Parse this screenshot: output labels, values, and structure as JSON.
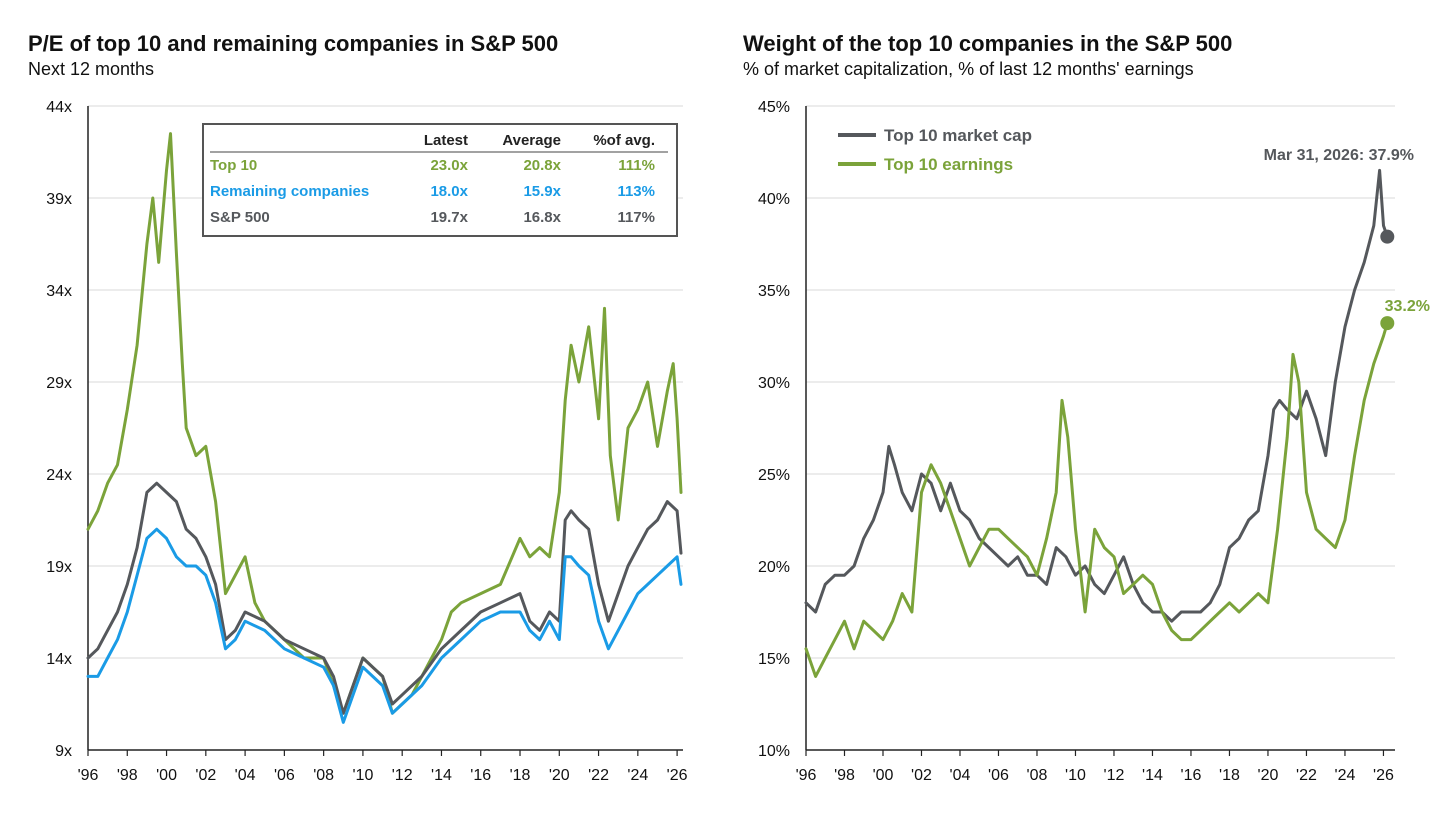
{
  "colors": {
    "gray": "#55585c",
    "green": "#7ba33a",
    "blue": "#1a9be6",
    "grid": "#d9d9d9",
    "axis": "#222222"
  },
  "chart_data": [
    {
      "type": "line",
      "title": "P/E of top 10 and remaining companies in S&P 500",
      "subtitle": "Next 12 months",
      "ylim": [
        9,
        44
      ],
      "yticks": [
        9,
        14,
        19,
        24,
        29,
        34,
        39,
        44
      ],
      "ytick_labels": [
        "9x",
        "14x",
        "19x",
        "24x",
        "29x",
        "34x",
        "39x",
        "44x"
      ],
      "xlim": [
        1996,
        2026.3
      ],
      "xticks": [
        1996,
        1998,
        2000,
        2002,
        2004,
        2006,
        2008,
        2010,
        2012,
        2014,
        2016,
        2018,
        2020,
        2022,
        2024,
        2026
      ],
      "xtick_labels": [
        "'96",
        "'98",
        "'00",
        "'02",
        "'04",
        "'06",
        "'08",
        "'10",
        "'12",
        "'14",
        "'16",
        "'18",
        "'20",
        "'22",
        "'24",
        "'26"
      ],
      "table": {
        "headers": [
          "",
          "Latest",
          "Average",
          "%of avg."
        ],
        "rows": [
          {
            "cells": [
              "Top 10",
              "23.0x",
              "20.8x",
              "111%"
            ],
            "color": "green"
          },
          {
            "cells": [
              "Remaining companies",
              "18.0x",
              "15.9x",
              "113%"
            ],
            "color": "blue"
          },
          {
            "cells": [
              "S&P 500",
              "19.7x",
              "16.8x",
              "117%"
            ],
            "color": "gray"
          }
        ]
      },
      "series": [
        {
          "color": "green",
          "x": [
            1996,
            1996.5,
            1997,
            1997.5,
            1998,
            1998.5,
            1999,
            1999.3,
            1999.6,
            2000,
            2000.2,
            2000.5,
            2000.8,
            2001,
            2001.5,
            2002,
            2002.5,
            2003,
            2003.5,
            2004,
            2004.5,
            2005,
            2006,
            2007,
            2008,
            2008.5,
            2009,
            2009.5,
            2010,
            2010.5,
            2011,
            2011.5,
            2012,
            2012.5,
            2013,
            2013.5,
            2014,
            2014.5,
            2015,
            2016,
            2017,
            2018,
            2018.5,
            2019,
            2019.5,
            2020,
            2020.3,
            2020.6,
            2021,
            2021.5,
            2022,
            2022.3,
            2022.6,
            2023,
            2023.5,
            2024,
            2024.5,
            2025,
            2025.5,
            2025.8,
            2026,
            2026.2
          ],
          "y": [
            21.0,
            22.0,
            23.5,
            24.5,
            27.5,
            31.0,
            36.5,
            39.0,
            35.5,
            40.5,
            42.5,
            36.0,
            30.0,
            26.5,
            25.0,
            25.5,
            22.5,
            17.5,
            18.5,
            19.5,
            17.0,
            16.0,
            15.0,
            14.0,
            14.0,
            12.5,
            11.0,
            12.5,
            14.0,
            13.5,
            13.0,
            11.0,
            11.5,
            12.0,
            13.0,
            14.0,
            15.0,
            16.5,
            17.0,
            17.5,
            18.0,
            20.5,
            19.5,
            20.0,
            19.5,
            23.0,
            28.0,
            31.0,
            29.0,
            32.0,
            27.0,
            33.0,
            25.0,
            21.5,
            26.5,
            27.5,
            29.0,
            25.5,
            28.5,
            30.0,
            27.0,
            23.0
          ]
        },
        {
          "color": "gray",
          "x": [
            1996,
            1996.5,
            1997,
            1997.5,
            1998,
            1998.5,
            1999,
            1999.5,
            2000,
            2000.5,
            2001,
            2001.5,
            2002,
            2002.5,
            2003,
            2003.5,
            2004,
            2005,
            2006,
            2007,
            2008,
            2008.5,
            2009,
            2009.5,
            2010,
            2010.5,
            2011,
            2011.5,
            2012,
            2013,
            2014,
            2015,
            2016,
            2017,
            2018,
            2018.5,
            2019,
            2019.5,
            2020,
            2020.3,
            2020.6,
            2021,
            2021.5,
            2022,
            2022.5,
            2023,
            2023.5,
            2024,
            2024.5,
            2025,
            2025.5,
            2026,
            2026.2
          ],
          "y": [
            14.0,
            14.5,
            15.5,
            16.5,
            18.0,
            20.0,
            23.0,
            23.5,
            23.0,
            22.5,
            21.0,
            20.5,
            19.5,
            18.0,
            15.0,
            15.5,
            16.5,
            16.0,
            15.0,
            14.5,
            14.0,
            13.0,
            11.0,
            12.5,
            14.0,
            13.5,
            13.0,
            11.5,
            12.0,
            13.0,
            14.5,
            15.5,
            16.5,
            17.0,
            17.5,
            16.0,
            15.5,
            16.5,
            16.0,
            21.5,
            22.0,
            21.5,
            21.0,
            18.0,
            16.0,
            17.5,
            19.0,
            20.0,
            21.0,
            21.5,
            22.5,
            22.0,
            19.7
          ]
        },
        {
          "color": "blue",
          "x": [
            1996,
            1996.5,
            1997,
            1997.5,
            1998,
            1998.5,
            1999,
            1999.5,
            2000,
            2000.5,
            2001,
            2001.5,
            2002,
            2002.5,
            2003,
            2003.5,
            2004,
            2005,
            2006,
            2007,
            2008,
            2008.5,
            2009,
            2009.5,
            2010,
            2010.5,
            2011,
            2011.5,
            2012,
            2013,
            2014,
            2015,
            2016,
            2017,
            2018,
            2018.5,
            2019,
            2019.5,
            2020,
            2020.3,
            2020.6,
            2021,
            2021.5,
            2022,
            2022.5,
            2023,
            2023.5,
            2024,
            2024.5,
            2025,
            2025.5,
            2026,
            2026.2
          ],
          "y": [
            13.0,
            13.0,
            14.0,
            15.0,
            16.5,
            18.5,
            20.5,
            21.0,
            20.5,
            19.5,
            19.0,
            19.0,
            18.5,
            17.0,
            14.5,
            15.0,
            16.0,
            15.5,
            14.5,
            14.0,
            13.5,
            12.5,
            10.5,
            12.0,
            13.5,
            13.0,
            12.5,
            11.0,
            11.5,
            12.5,
            14.0,
            15.0,
            16.0,
            16.5,
            16.5,
            15.5,
            15.0,
            16.0,
            15.0,
            19.5,
            19.5,
            19.0,
            18.5,
            16.0,
            14.5,
            15.5,
            16.5,
            17.5,
            18.0,
            18.5,
            19.0,
            19.5,
            18.0
          ]
        }
      ]
    },
    {
      "type": "line",
      "title": "Weight of the top 10 companies in the S&P 500",
      "subtitle": "% of market capitalization, % of last 12 months' earnings",
      "ylim": [
        10,
        45
      ],
      "yticks": [
        10,
        15,
        20,
        25,
        30,
        35,
        40,
        45
      ],
      "ytick_labels": [
        "10%",
        "15%",
        "20%",
        "25%",
        "30%",
        "35%",
        "40%",
        "45%"
      ],
      "xlim": [
        1996,
        2026.6
      ],
      "xticks": [
        1996,
        1998,
        2000,
        2002,
        2004,
        2006,
        2008,
        2010,
        2012,
        2014,
        2016,
        2018,
        2020,
        2022,
        2024,
        2026
      ],
      "xtick_labels": [
        "'96",
        "'98",
        "'00",
        "'02",
        "'04",
        "'06",
        "'08",
        "'10",
        "'12",
        "'14",
        "'16",
        "'18",
        "'20",
        "'22",
        "'24",
        "'26"
      ],
      "legend": {
        "position": "top-left",
        "entries": [
          {
            "label": "Top 10 market cap",
            "color": "gray"
          },
          {
            "label": "Top 10 earnings",
            "color": "green"
          }
        ]
      },
      "annotations": [
        {
          "text": "Mar 31, 2026: 37.9%",
          "x": 2026.2,
          "y": 37.9,
          "color": "gray"
        },
        {
          "text": "33.2%",
          "x": 2026.2,
          "y": 33.2,
          "color": "green"
        }
      ],
      "series": [
        {
          "name": "Top 10 market cap",
          "color": "gray",
          "x": [
            1996,
            1996.5,
            1997,
            1997.5,
            1998,
            1998.5,
            1999,
            1999.5,
            2000,
            2000.3,
            2000.6,
            2001,
            2001.5,
            2002,
            2002.5,
            2003,
            2003.5,
            2004,
            2004.5,
            2005,
            2005.5,
            2006,
            2006.5,
            2007,
            2007.5,
            2008,
            2008.5,
            2009,
            2009.5,
            2010,
            2010.5,
            2011,
            2011.5,
            2012,
            2012.5,
            2013,
            2013.5,
            2014,
            2014.5,
            2015,
            2015.5,
            2016,
            2016.5,
            2017,
            2017.5,
            2018,
            2018.5,
            2019,
            2019.5,
            2020,
            2020.3,
            2020.6,
            2021,
            2021.5,
            2022,
            2022.5,
            2023,
            2023.5,
            2024,
            2024.5,
            2025,
            2025.5,
            2025.8,
            2026,
            2026.2
          ],
          "y": [
            18.0,
            17.5,
            19.0,
            19.5,
            19.5,
            20.0,
            21.5,
            22.5,
            24.0,
            26.5,
            25.5,
            24.0,
            23.0,
            25.0,
            24.5,
            23.0,
            24.5,
            23.0,
            22.5,
            21.5,
            21.0,
            20.5,
            20.0,
            20.5,
            19.5,
            19.5,
            19.0,
            21.0,
            20.5,
            19.5,
            20.0,
            19.0,
            18.5,
            19.5,
            20.5,
            19.0,
            18.0,
            17.5,
            17.5,
            17.0,
            17.5,
            17.5,
            17.5,
            18.0,
            19.0,
            21.0,
            21.5,
            22.5,
            23.0,
            26.0,
            28.5,
            29.0,
            28.5,
            28.0,
            29.5,
            28.0,
            26.0,
            30.0,
            33.0,
            35.0,
            36.5,
            38.5,
            41.5,
            38.5,
            37.9
          ]
        },
        {
          "name": "Top 10 earnings",
          "color": "green",
          "x": [
            1996,
            1996.5,
            1997,
            1997.5,
            1998,
            1998.5,
            1999,
            1999.5,
            2000,
            2000.5,
            2001,
            2001.5,
            2002,
            2002.5,
            2003,
            2003.5,
            2004,
            2004.5,
            2005,
            2005.5,
            2006,
            2006.5,
            2007,
            2007.5,
            2008,
            2008.5,
            2009,
            2009.3,
            2009.6,
            2010,
            2010.5,
            2011,
            2011.5,
            2012,
            2012.5,
            2013,
            2013.5,
            2014,
            2014.5,
            2015,
            2015.5,
            2016,
            2016.5,
            2017,
            2017.5,
            2018,
            2018.5,
            2019,
            2019.5,
            2020,
            2020.5,
            2021,
            2021.3,
            2021.6,
            2022,
            2022.5,
            2023,
            2023.5,
            2024,
            2024.5,
            2025,
            2025.5,
            2026,
            2026.2
          ],
          "y": [
            15.5,
            14.0,
            15.0,
            16.0,
            17.0,
            15.5,
            17.0,
            16.5,
            16.0,
            17.0,
            18.5,
            17.5,
            24.0,
            25.5,
            24.5,
            23.0,
            21.5,
            20.0,
            21.0,
            22.0,
            22.0,
            21.5,
            21.0,
            20.5,
            19.5,
            21.5,
            24.0,
            29.0,
            27.0,
            22.0,
            17.5,
            22.0,
            21.0,
            20.5,
            18.5,
            19.0,
            19.5,
            19.0,
            17.5,
            16.5,
            16.0,
            16.0,
            16.5,
            17.0,
            17.5,
            18.0,
            17.5,
            18.0,
            18.5,
            18.0,
            22.0,
            27.0,
            31.5,
            30.0,
            24.0,
            22.0,
            21.5,
            21.0,
            22.5,
            26.0,
            29.0,
            31.0,
            32.5,
            33.2
          ]
        }
      ]
    }
  ]
}
